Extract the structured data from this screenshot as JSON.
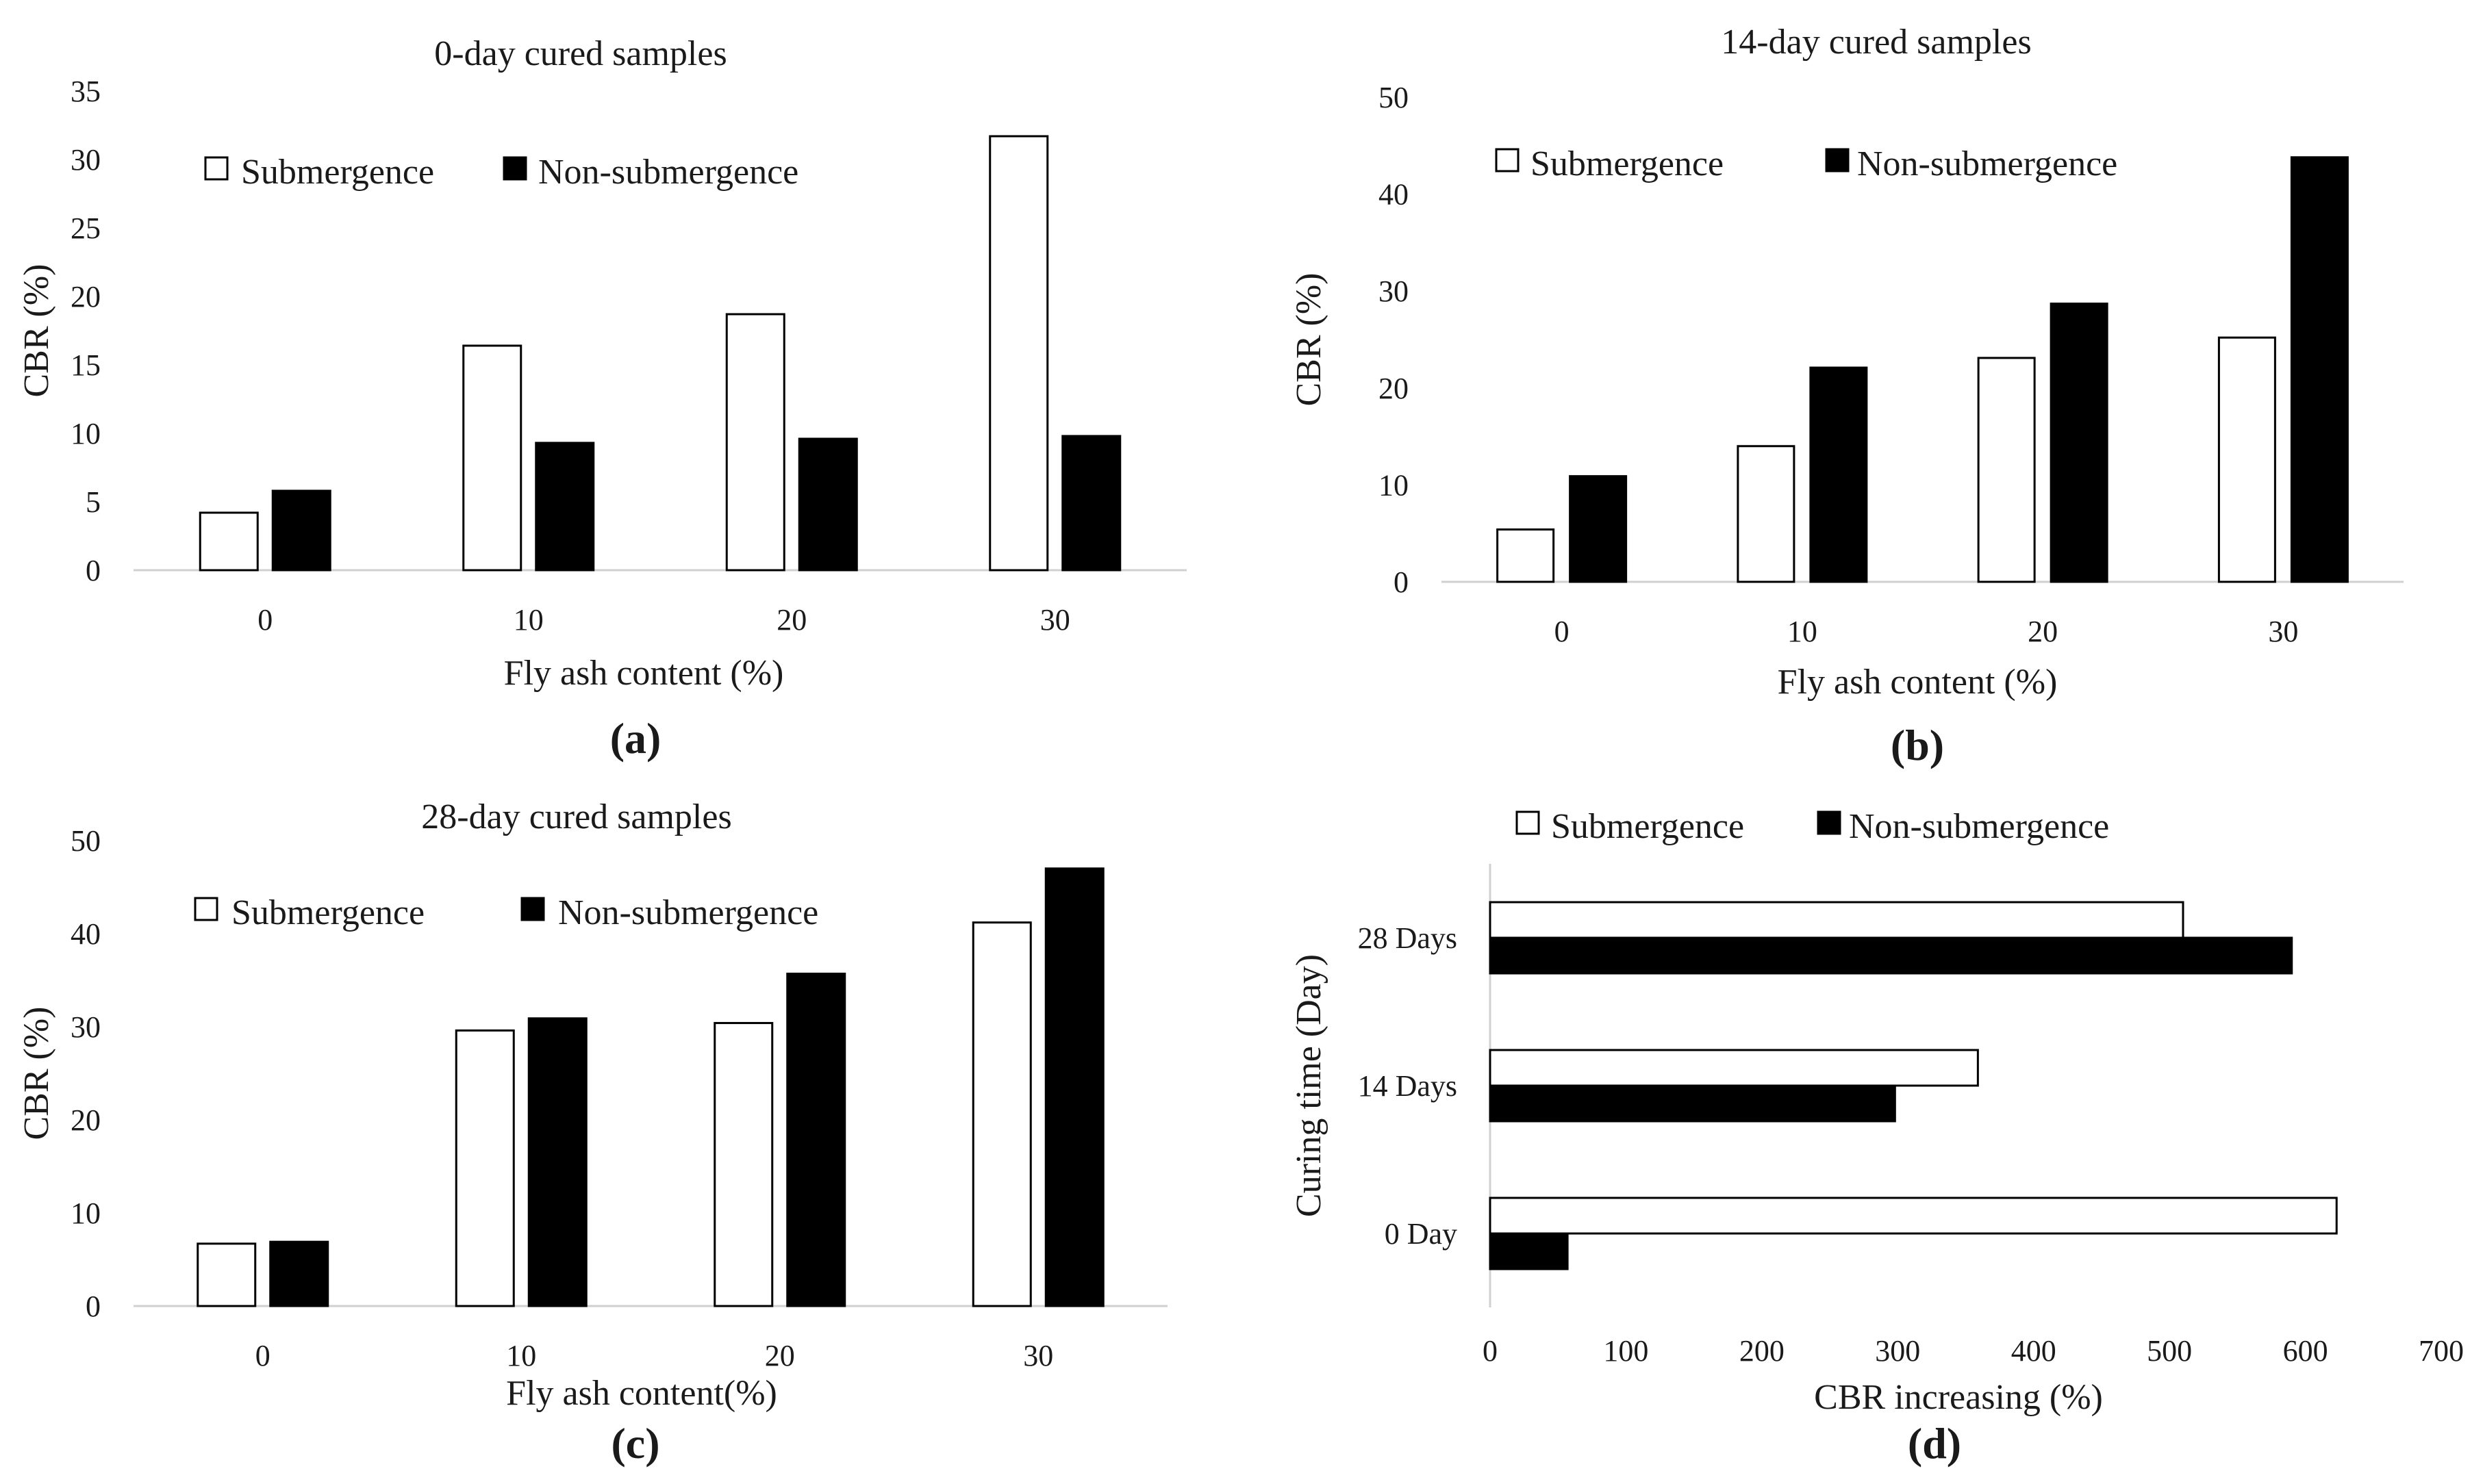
{
  "chart_data": [
    {
      "id": "a",
      "panel_label": "(a)",
      "type": "bar",
      "orientation": "vertical",
      "title": "0-day cured samples",
      "xlabel": "Fly ash content (%)",
      "ylabel": "CBR (%)",
      "categories": [
        "0",
        "10",
        "20",
        "30"
      ],
      "ylim": [
        0,
        35
      ],
      "yticks": [
        0,
        5,
        10,
        15,
        20,
        25,
        30,
        35
      ],
      "series": [
        {
          "name": "Submergence",
          "color": "#ffffff",
          "values": [
            4.2,
            16.4,
            18.7,
            31.7
          ]
        },
        {
          "name": "Non-submergence",
          "color": "#000000",
          "values": [
            5.8,
            9.3,
            9.6,
            9.8
          ]
        }
      ],
      "legend": "top-center",
      "grid": false
    },
    {
      "id": "b",
      "panel_label": "(b)",
      "type": "bar",
      "orientation": "vertical",
      "title": "14-day cured samples",
      "xlabel": "Fly ash content (%)",
      "ylabel": "CBR (%)",
      "categories": [
        "0",
        "10",
        "20",
        "30"
      ],
      "ylim": [
        0,
        50
      ],
      "yticks": [
        0,
        10,
        20,
        30,
        40,
        50
      ],
      "series": [
        {
          "name": "Submergence",
          "color": "#ffffff",
          "values": [
            5.4,
            14.0,
            23.1,
            25.2
          ]
        },
        {
          "name": "Non-submergence",
          "color": "#000000",
          "values": [
            10.9,
            22.1,
            28.7,
            43.8
          ]
        }
      ],
      "legend": "top-center",
      "grid": false
    },
    {
      "id": "c",
      "panel_label": "(c)",
      "type": "bar",
      "orientation": "vertical",
      "title": "28-day cured samples",
      "xlabel": "Fly ash content(%)",
      "ylabel": "CBR (%)",
      "categories": [
        "0",
        "10",
        "20",
        "30"
      ],
      "ylim": [
        0,
        50
      ],
      "yticks": [
        0,
        10,
        20,
        30,
        40,
        50
      ],
      "series": [
        {
          "name": "Submergence",
          "color": "#ffffff",
          "values": [
            6.7,
            29.6,
            30.4,
            41.2
          ]
        },
        {
          "name": "Non-submergence",
          "color": "#000000",
          "values": [
            6.9,
            30.9,
            35.7,
            47.0
          ]
        }
      ],
      "legend": "top-center",
      "grid": false
    },
    {
      "id": "d",
      "panel_label": "(d)",
      "type": "bar",
      "orientation": "horizontal",
      "title": "",
      "xlabel": "CBR increasing (%)",
      "ylabel": "Curing time (Day)",
      "categories": [
        "0 Day",
        "14 Days",
        "28 Days"
      ],
      "xlim": [
        0,
        700
      ],
      "xticks": [
        0,
        100,
        200,
        300,
        400,
        500,
        600,
        700
      ],
      "series": [
        {
          "name": "Submergence",
          "color": "#ffffff",
          "values": [
            623,
            359,
            510
          ]
        },
        {
          "name": "Non-submergence",
          "color": "#000000",
          "values": [
            57,
            298,
            590
          ]
        }
      ],
      "legend": "top",
      "grid": false
    }
  ]
}
